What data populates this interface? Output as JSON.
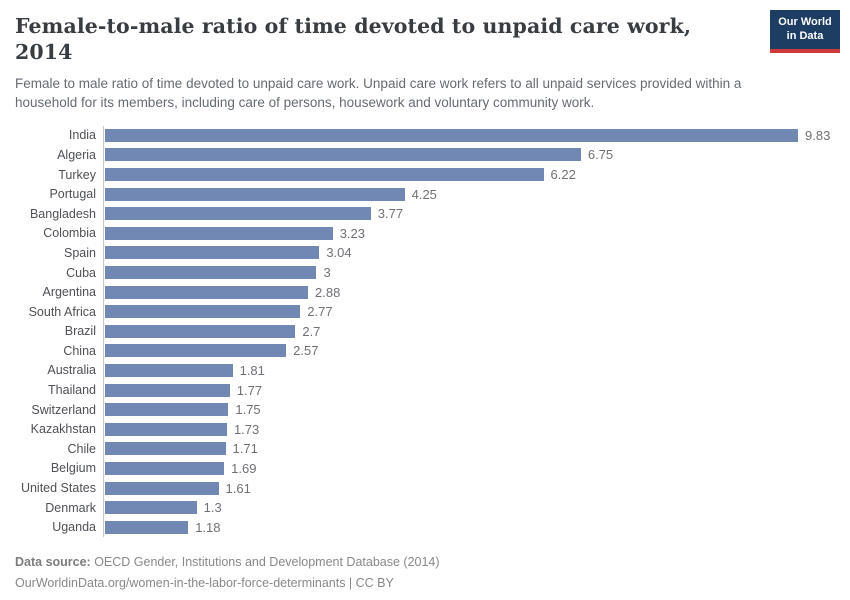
{
  "header": {
    "title": "Female-to-male ratio of time devoted to unpaid care work, 2014",
    "logo": {
      "line1": "Our World",
      "line2": "in Data"
    }
  },
  "subtitle": "Female to male ratio of time devoted to unpaid care work. Unpaid care work refers to all unpaid services provided within a household for its members, including care of persons, housework and voluntary community work.",
  "colors": {
    "bar": "#7188b4",
    "logo_background": "#1d3d63",
    "logo_accent": "#cf3b3b",
    "title_text": "#383d42",
    "axis_line": "#c9c9c9"
  },
  "chart_data": {
    "type": "bar",
    "orientation": "horizontal",
    "title": "Female-to-male ratio of time devoted to unpaid care work, 2014",
    "xlabel": "",
    "ylabel": "",
    "xlim": [
      0,
      9.83
    ],
    "grid": false,
    "categories": [
      "India",
      "Algeria",
      "Turkey",
      "Portugal",
      "Bangladesh",
      "Colombia",
      "Spain",
      "Cuba",
      "Argentina",
      "South Africa",
      "Brazil",
      "China",
      "Australia",
      "Thailand",
      "Switzerland",
      "Kazakhstan",
      "Chile",
      "Belgium",
      "United States",
      "Denmark",
      "Uganda"
    ],
    "values": [
      9.83,
      6.75,
      6.22,
      4.25,
      3.77,
      3.23,
      3.04,
      3,
      2.88,
      2.77,
      2.7,
      2.57,
      1.81,
      1.77,
      1.75,
      1.73,
      1.71,
      1.69,
      1.61,
      1.3,
      1.18
    ],
    "value_labels": [
      "9.83",
      "6.75",
      "6.22",
      "4.25",
      "3.77",
      "3.23",
      "3.04",
      "3",
      "2.88",
      "2.77",
      "2.7",
      "2.57",
      "1.81",
      "1.77",
      "1.75",
      "1.73",
      "1.71",
      "1.69",
      "1.61",
      "1.3",
      "1.18"
    ]
  },
  "footer": {
    "source_label": "Data source:",
    "source_text": " OECD Gender, Institutions and Development Database (2014)",
    "link_line": "OurWorldinData.org/women-in-the-labor-force-determinants | CC BY"
  }
}
